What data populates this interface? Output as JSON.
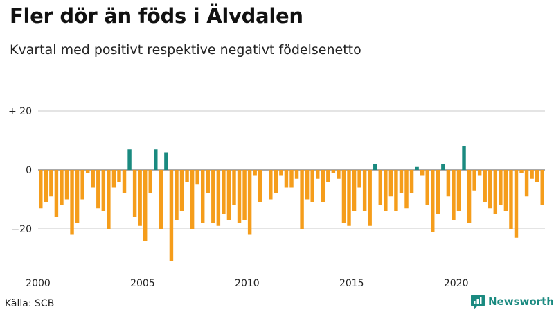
{
  "header": {
    "title": "Fler dör än föds i Älvdalen",
    "subtitle": "Kvartal med positivt respektive negativt födelsenetto"
  },
  "footer": {
    "source": "Källa: SCB",
    "brand": "Newsworthy"
  },
  "colors": {
    "negative": "#f59d1b",
    "positive": "#1a8a80",
    "grid": "#c8c8c8",
    "zero": "#555555"
  },
  "chart_data": {
    "type": "bar",
    "title": "Fler dör än föds i Älvdalen",
    "subtitle": "Kvartal med positivt respektive negativt födelsenetto",
    "x_start_year": 2000,
    "x_ticks": [
      "2000",
      "2005",
      "2010",
      "2015",
      "2020"
    ],
    "y_ticks": [
      {
        "value": 20,
        "label": "+ 20"
      },
      {
        "value": 0,
        "label": "0"
      },
      {
        "value": -20,
        "label": "−20"
      }
    ],
    "ylim": [
      -33,
      20
    ],
    "values": [
      -13,
      -11,
      -9,
      -16,
      -12,
      -10,
      -22,
      -18,
      -10,
      -1,
      -6,
      -13,
      -14,
      -20,
      -6,
      -4,
      -8,
      7,
      -16,
      -19,
      -24,
      -8,
      7,
      -20,
      6,
      -31,
      -17,
      -14,
      -4,
      -20,
      -5,
      -18,
      -8,
      -18,
      -19,
      -15,
      -17,
      -12,
      -18,
      -17,
      -22,
      -2,
      -11,
      0,
      -10,
      -8,
      -2,
      -6,
      -6,
      -3,
      -20,
      -10,
      -11,
      -3,
      -11,
      -4,
      -1,
      -3,
      -18,
      -19,
      -14,
      -6,
      -14,
      -19,
      2,
      -12,
      -14,
      -9,
      -14,
      -8,
      -13,
      -8,
      1,
      -2,
      -12,
      -21,
      -15,
      2,
      -9,
      -17,
      -14,
      8,
      -18,
      -7,
      -2,
      -11,
      -13,
      -15,
      -12,
      -14,
      -20,
      -23,
      -1,
      -9,
      -3,
      -4,
      -12
    ]
  }
}
